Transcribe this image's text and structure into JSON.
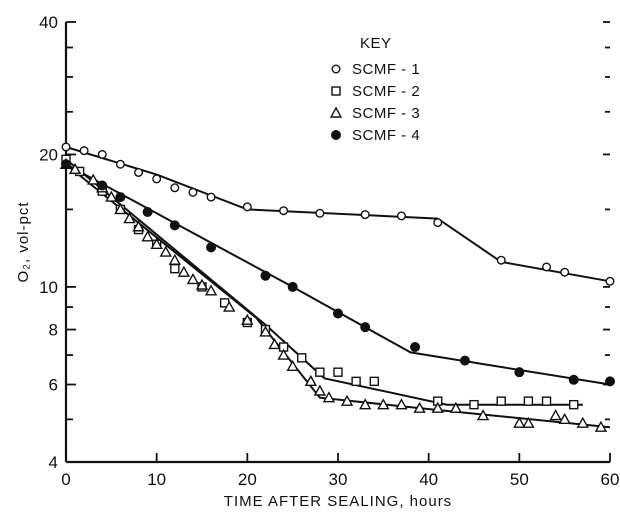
{
  "chart_data": {
    "type": "scatter",
    "title": "",
    "xlabel": "TIME AFTER SEALING, hours",
    "ylabel": "O₂, vol-pct",
    "xlim": [
      0,
      60
    ],
    "ylim": [
      4,
      40
    ],
    "yscale": "log",
    "x_ticks": [
      0,
      10,
      20,
      30,
      40,
      50,
      60
    ],
    "y_ticks_labeled": [
      4,
      6,
      8,
      10,
      20,
      40
    ],
    "y_ticks_minor": [
      5,
      7,
      9,
      15,
      25,
      30,
      35
    ],
    "grid": false,
    "legend": {
      "title": "KEY",
      "placement": "top-center"
    },
    "series": [
      {
        "name": "SCMF - 1",
        "marker": "circle-open",
        "x": [
          0,
          2,
          4,
          6,
          8,
          10,
          12,
          14,
          16,
          20,
          24,
          28,
          33,
          37,
          41,
          48,
          53,
          55,
          60
        ],
        "y": [
          20.8,
          20.4,
          20.0,
          19.0,
          18.2,
          17.6,
          16.8,
          16.4,
          16.0,
          15.2,
          14.9,
          14.7,
          14.6,
          14.5,
          14.0,
          11.5,
          11.1,
          10.8,
          10.3
        ],
        "fit": {
          "x": [
            0,
            10,
            20,
            41,
            48,
            60
          ],
          "y": [
            20.8,
            18.0,
            15.0,
            14.3,
            11.4,
            10.3
          ]
        }
      },
      {
        "name": "SCMF - 2",
        "marker": "square-open",
        "x": [
          0,
          1.5,
          4,
          6,
          8,
          10,
          12,
          15,
          17.5,
          20,
          22,
          24,
          26,
          28,
          30,
          32,
          34,
          41,
          45,
          48,
          51,
          53,
          56
        ],
        "y": [
          19.5,
          18.3,
          16.5,
          15.0,
          13.5,
          12.5,
          11.0,
          10.0,
          9.2,
          8.3,
          8.0,
          7.3,
          6.9,
          6.4,
          6.4,
          6.1,
          6.1,
          5.5,
          5.4,
          5.5,
          5.5,
          5.5,
          5.4
        ],
        "fit": {
          "x": [
            0,
            22,
            28.5,
            42,
            57
          ],
          "y": [
            19.5,
            8.2,
            6.2,
            5.4,
            5.4
          ]
        }
      },
      {
        "name": "SCMF - 3",
        "marker": "triangle-open",
        "x": [
          0,
          1,
          3,
          4,
          5,
          6,
          7,
          8,
          9,
          10,
          11,
          12,
          13,
          14,
          15,
          16,
          18,
          20,
          22,
          23,
          24,
          25,
          27,
          28,
          29,
          31,
          33,
          35,
          37,
          39,
          41,
          43,
          46,
          50,
          51,
          54,
          55,
          57,
          59
        ],
        "y": [
          19.0,
          18.5,
          17.5,
          16.8,
          16.0,
          15.0,
          14.3,
          13.7,
          13.0,
          12.5,
          12.0,
          11.5,
          10.8,
          10.4,
          10.1,
          9.8,
          9.0,
          8.4,
          7.9,
          7.4,
          7.0,
          6.6,
          6.1,
          5.8,
          5.6,
          5.5,
          5.4,
          5.4,
          5.4,
          5.3,
          5.3,
          5.3,
          5.1,
          4.9,
          4.9,
          5.1,
          5.0,
          4.9,
          4.8
        ],
        "fit": {
          "x": [
            0,
            21,
            28,
            41,
            60
          ],
          "y": [
            19.0,
            8.5,
            5.6,
            5.25,
            4.8
          ]
        }
      },
      {
        "name": "SCMF - 4",
        "marker": "circle-filled",
        "x": [
          0,
          4,
          6,
          9,
          12,
          16,
          22,
          25,
          30,
          33,
          38.5,
          44,
          50,
          56,
          60
        ],
        "y": [
          19.0,
          17.0,
          16.0,
          14.8,
          13.8,
          12.3,
          10.6,
          10.0,
          8.7,
          8.1,
          7.3,
          6.8,
          6.4,
          6.15,
          6.1
        ],
        "fit": {
          "x": [
            0,
            25,
            38,
            60
          ],
          "y": [
            19.0,
            10.0,
            7.1,
            6.0
          ]
        }
      }
    ]
  }
}
